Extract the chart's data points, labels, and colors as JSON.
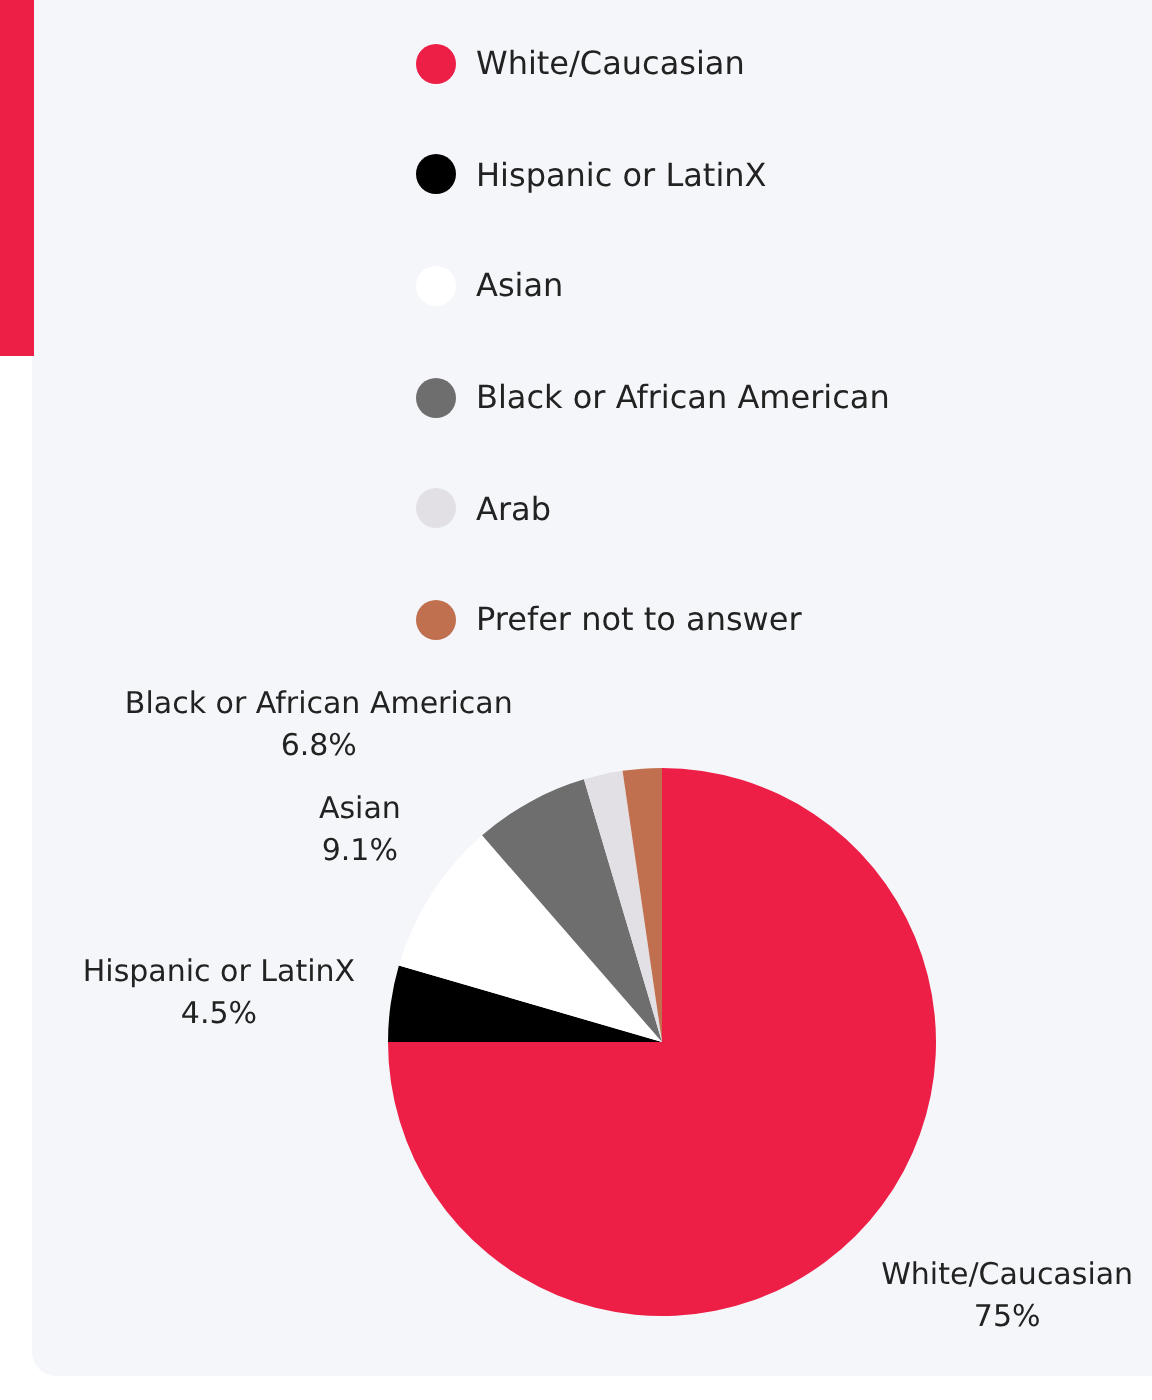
{
  "chart_data": {
    "type": "pie",
    "categories": [
      "White/Caucasian",
      "Hispanic or LatinX",
      "Asian",
      "Black or African American",
      "Arab",
      "Prefer not to answer"
    ],
    "values": [
      75,
      4.5,
      9.1,
      6.8,
      2.3,
      2.3
    ],
    "colors": [
      "#ed1f46",
      "#000000",
      "#ffffff",
      "#6e6e6e",
      "#e2e0e4",
      "#c0704e"
    ],
    "value_labels": [
      "75%",
      "4.5%",
      "9.1%",
      "6.8%",
      null,
      null
    ],
    "legend": "top"
  }
}
